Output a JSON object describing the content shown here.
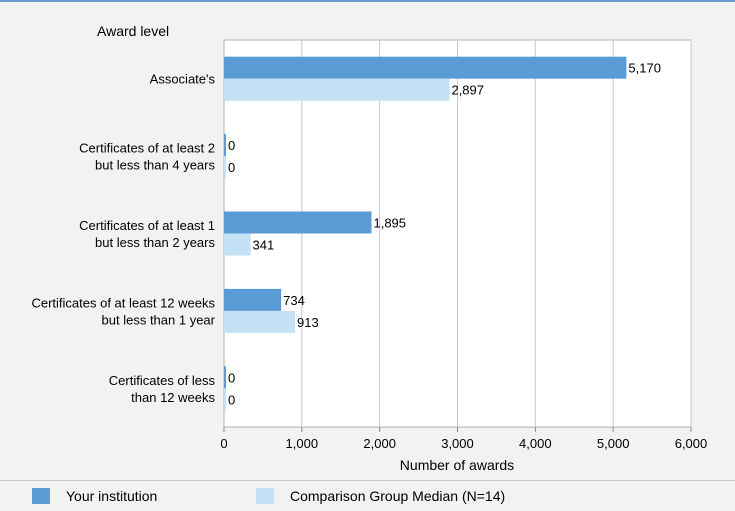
{
  "chart_data": {
    "type": "bar",
    "orientation": "horizontal",
    "title": "",
    "category_axis_label": "Award level",
    "xlabel": "Number of awards",
    "xlim": [
      0,
      6000
    ],
    "xticks": [
      0,
      1000,
      2000,
      3000,
      4000,
      5000,
      6000
    ],
    "xtick_labels": [
      "0",
      "1,000",
      "2,000",
      "3,000",
      "4,000",
      "5,000",
      "6,000"
    ],
    "grid": "vertical",
    "categories": [
      [
        "Associate's"
      ],
      [
        "Certificates of at least 2",
        "but less than 4 years"
      ],
      [
        "Certificates of at least 1",
        "but  less than 2 years"
      ],
      [
        "Certificates of at least 12 weeks",
        "but less than 1 year"
      ],
      [
        "Certificates of less",
        "than 12 weeks"
      ]
    ],
    "series": [
      {
        "name": "Your institution",
        "color": "#5b9bd5",
        "values": [
          5170,
          0,
          1895,
          734,
          0
        ],
        "labels": [
          "5,170",
          "0",
          "1,895",
          "734",
          "0"
        ]
      },
      {
        "name": "Comparison Group Median (N=14)",
        "color": "#c5e1f5",
        "values": [
          2897,
          0,
          341,
          913,
          0
        ],
        "labels": [
          "2,897",
          "0",
          "341",
          "913",
          "0"
        ]
      }
    ],
    "legend_position": "bottom"
  }
}
